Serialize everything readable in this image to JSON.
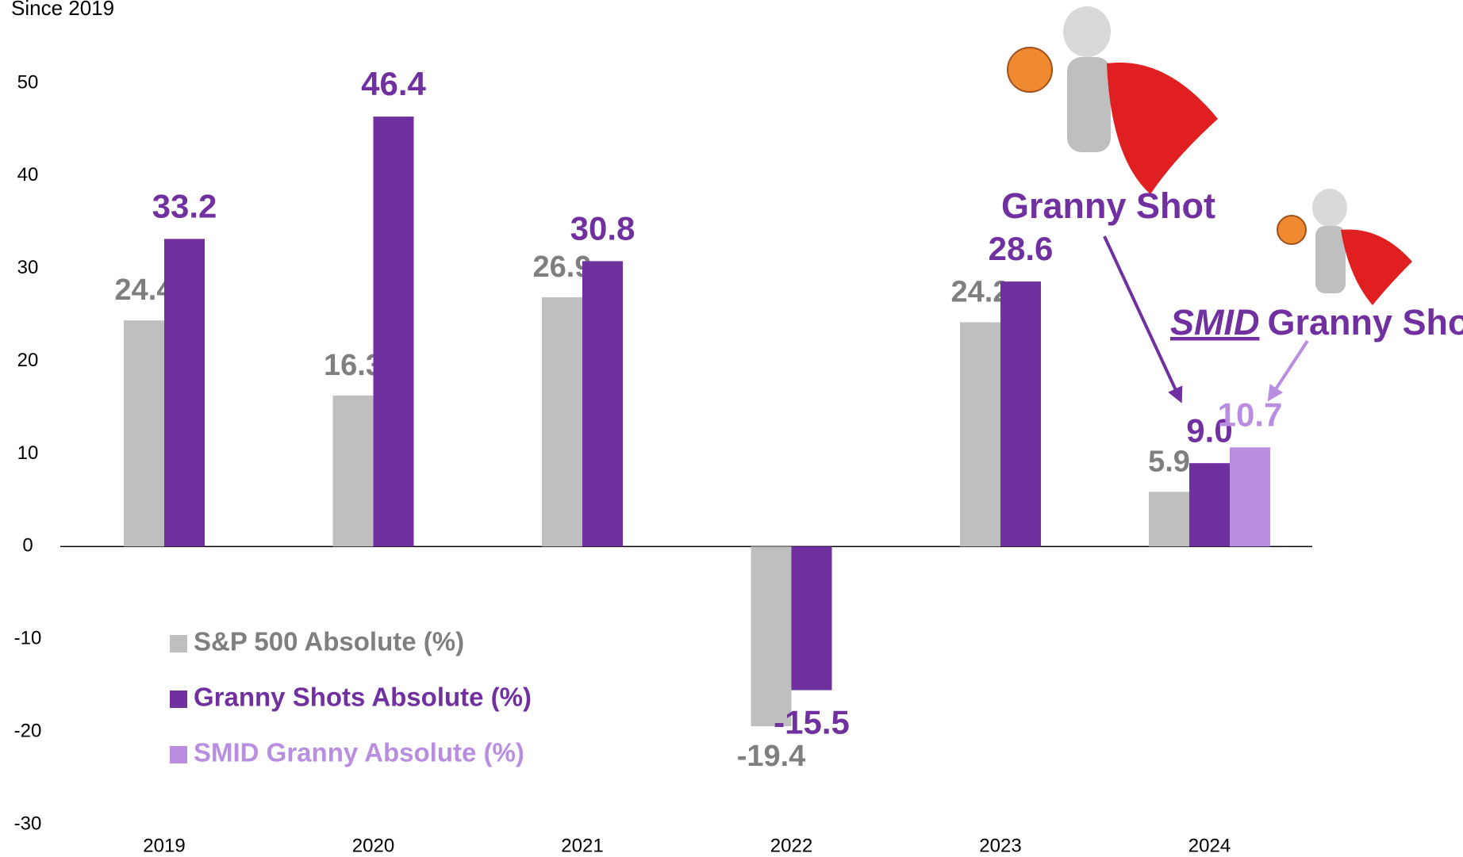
{
  "chart_data": {
    "type": "bar",
    "subtitle": "Since 2019",
    "categories": [
      "2019",
      "2020",
      "2021",
      "2022",
      "2023",
      "2024"
    ],
    "series": [
      {
        "name": "S&P 500 Absolute (%)",
        "color": "#bfbfbf",
        "label_color": "#7f7f7f",
        "values": [
          24.4,
          16.3,
          26.9,
          -19.4,
          24.2,
          5.9
        ]
      },
      {
        "name": "Granny Shots Absolute (%)",
        "color": "#7030a0",
        "label_color": "#7030a0",
        "values": [
          33.2,
          46.4,
          30.8,
          -15.5,
          28.6,
          9.0
        ],
        "value_labels": [
          "33.2",
          "46.4",
          "30.8",
          "-15.5",
          "28.6",
          "9.0"
        ]
      },
      {
        "name": "SMID Granny Absolute (%)",
        "color": "#b98ee0",
        "label_color": "#b98ee0",
        "values": [
          null,
          null,
          null,
          null,
          null,
          10.7
        ]
      }
    ],
    "ylim": [
      -30,
      50
    ],
    "yticks": [
      -30,
      -20,
      -10,
      0,
      10,
      20,
      30,
      40,
      50
    ],
    "legend": "lower left",
    "annotations": [
      {
        "text": "Granny Shot"
      },
      {
        "prefix": "SMID",
        "text": "Granny Shot*"
      }
    ]
  }
}
